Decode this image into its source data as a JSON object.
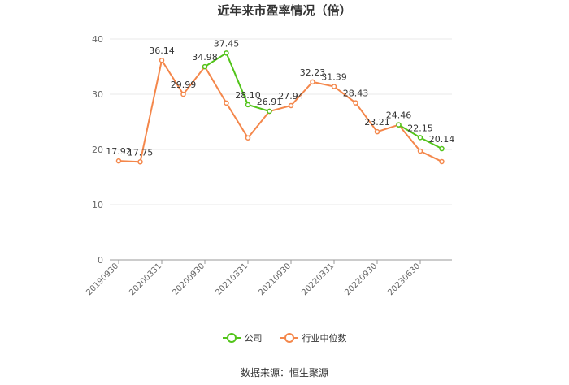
{
  "title": "近年来市盈率情况（倍）",
  "source": "数据来源：恒生聚源",
  "legend": {
    "company_label": "公司",
    "industry_label": "行业中位数"
  },
  "colors": {
    "company": "#52c41a",
    "industry": "#f4874b",
    "grid": "#e8e8e8",
    "axis": "#999999",
    "text": "#333333"
  },
  "chart_data": {
    "type": "line",
    "title": "近年来市盈率情况（倍）",
    "ylim": [
      0,
      40
    ],
    "yticks": [
      0,
      10,
      20,
      30,
      40
    ],
    "x_tick_labels": [
      "20190930",
      "20200331",
      "20200930",
      "20210331",
      "20210930",
      "20220331",
      "20220930",
      "20230630"
    ],
    "x_tick_positions": [
      0,
      2,
      4,
      6,
      8,
      10,
      12,
      14
    ],
    "x": [
      "20190930",
      "20191231",
      "20200331",
      "20200630",
      "20200930",
      "20201231",
      "20210331",
      "20210630",
      "20210930",
      "20211231",
      "20220331",
      "20220630",
      "20220930",
      "20221231",
      "20230331",
      "20230630"
    ],
    "series": [
      {
        "name": "行业中位数",
        "color": "#f4874b",
        "values": [
          17.92,
          17.75,
          36.14,
          29.99,
          34.98,
          28.4,
          22.1,
          26.91,
          27.94,
          32.23,
          31.39,
          28.43,
          23.21,
          24.46,
          19.7,
          17.8
        ]
      },
      {
        "name": "公司",
        "color": "#52c41a",
        "values": [
          null,
          null,
          null,
          null,
          34.98,
          37.45,
          28.1,
          26.91,
          null,
          null,
          null,
          null,
          null,
          24.46,
          22.15,
          20.14
        ]
      }
    ],
    "data_labels": [
      {
        "i": 0,
        "text": "17.92"
      },
      {
        "i": 1,
        "text": "17.75"
      },
      {
        "i": 2,
        "text": "36.14"
      },
      {
        "i": 3,
        "text": "29.99"
      },
      {
        "i": 4,
        "text": "34.98"
      },
      {
        "i": 5,
        "text": "37.45"
      },
      {
        "i": 6,
        "text": "28.10"
      },
      {
        "i": 7,
        "text": "26.91"
      },
      {
        "i": 8,
        "text": "27.94"
      },
      {
        "i": 9,
        "text": "32.23"
      },
      {
        "i": 10,
        "text": "31.39"
      },
      {
        "i": 11,
        "text": "28.43"
      },
      {
        "i": 12,
        "text": "23.21"
      },
      {
        "i": 13,
        "text": "24.46"
      },
      {
        "i": 14,
        "text": "22.15"
      },
      {
        "i": 15,
        "text": "20.14"
      }
    ]
  }
}
